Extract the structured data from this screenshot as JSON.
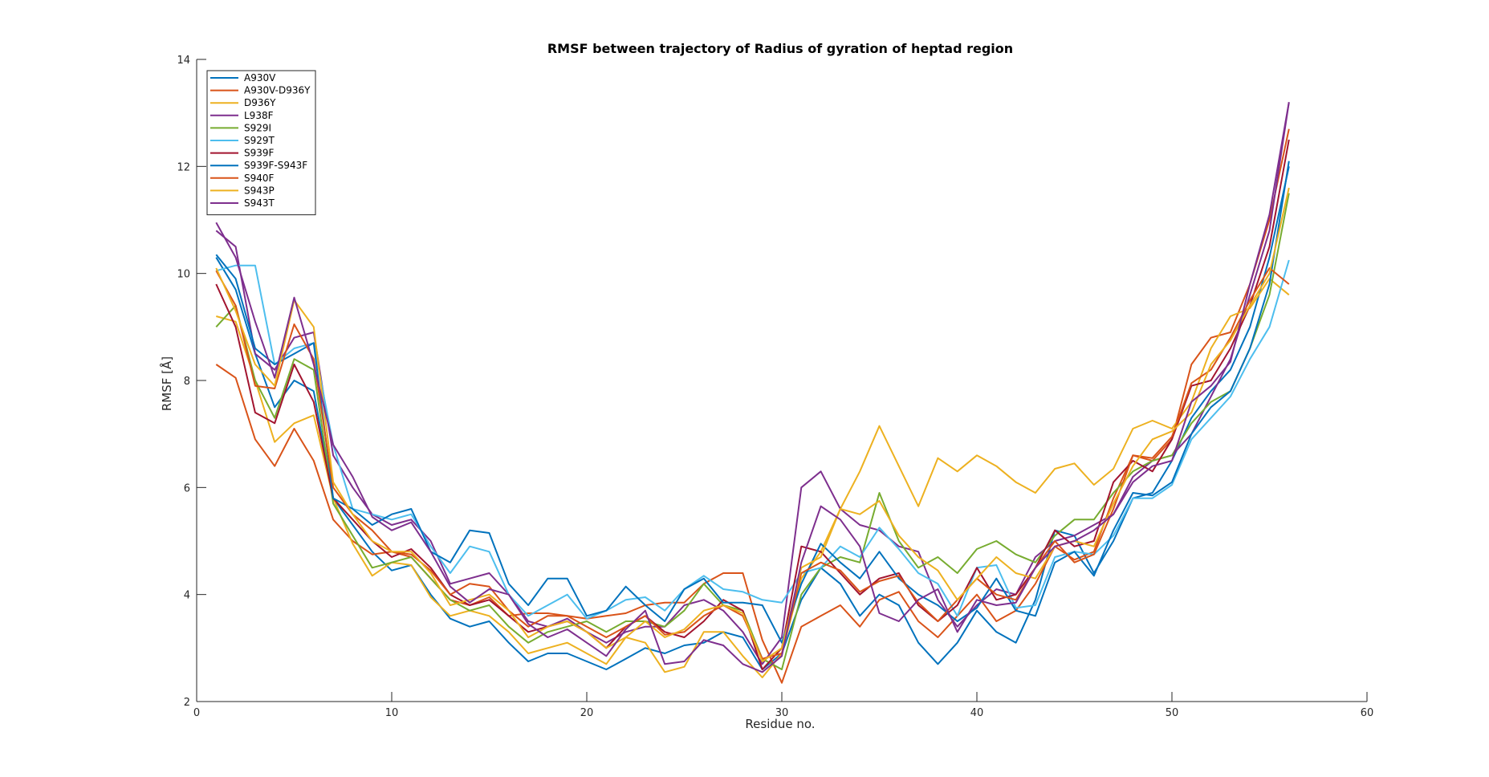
{
  "chart_data": {
    "type": "line",
    "title": "RMSF between trajectory of Radius of gyration of heptad region",
    "xlabel": "Residue no.",
    "ylabel": "RMSF [Å]",
    "xlim": [
      0,
      60
    ],
    "ylim": [
      2,
      14
    ],
    "xticks": [
      0,
      10,
      20,
      30,
      40,
      50,
      60
    ],
    "yticks": [
      2,
      4,
      6,
      8,
      10,
      12,
      14
    ],
    "grid": false,
    "legend_position": "top-left",
    "x": [
      1,
      2,
      3,
      4,
      5,
      6,
      7,
      8,
      9,
      10,
      11,
      12,
      13,
      14,
      15,
      16,
      17,
      18,
      19,
      20,
      21,
      22,
      23,
      24,
      25,
      26,
      27,
      28,
      29,
      30,
      31,
      32,
      33,
      34,
      35,
      36,
      37,
      38,
      39,
      40,
      41,
      42,
      43,
      44,
      45,
      46,
      47,
      48,
      49,
      50,
      51,
      52,
      53,
      54,
      55,
      56
    ],
    "series": [
      {
        "name": "A930V",
        "color": "#0072BD",
        "values": [
          10.3,
          9.7,
          8.5,
          7.5,
          8.0,
          7.8,
          5.8,
          5.3,
          4.8,
          4.45,
          4.55,
          4.0,
          3.55,
          3.4,
          3.5,
          3.1,
          2.75,
          2.9,
          2.9,
          2.75,
          2.6,
          2.8,
          3.0,
          2.9,
          3.05,
          3.1,
          3.3,
          3.2,
          2.6,
          2.9,
          3.9,
          4.5,
          4.2,
          3.6,
          4.0,
          3.8,
          3.1,
          2.7,
          3.1,
          3.7,
          3.3,
          3.1,
          3.9,
          5.2,
          5.1,
          4.4,
          5.0,
          5.8,
          5.9,
          6.5,
          7.3,
          7.8,
          8.2,
          9.0,
          10.3,
          12.0
        ]
      },
      {
        "name": "A930V-D936Y",
        "color": "#D95319",
        "values": [
          8.3,
          8.05,
          6.9,
          6.4,
          7.1,
          6.5,
          5.4,
          5.0,
          4.75,
          4.8,
          4.7,
          4.3,
          3.9,
          3.8,
          3.95,
          3.6,
          3.65,
          3.65,
          3.6,
          3.55,
          3.6,
          3.65,
          3.8,
          3.85,
          3.85,
          4.2,
          4.4,
          4.4,
          3.15,
          2.35,
          3.4,
          3.6,
          3.8,
          3.4,
          3.9,
          4.05,
          3.5,
          3.2,
          3.6,
          4.0,
          3.5,
          3.7,
          4.2,
          4.9,
          4.65,
          4.8,
          5.8,
          6.6,
          6.5,
          6.9,
          8.3,
          8.8,
          8.9,
          9.8,
          11.0,
          12.7
        ]
      },
      {
        "name": "D936Y",
        "color": "#EDB120",
        "values": [
          9.2,
          9.1,
          8.0,
          6.85,
          7.2,
          7.35,
          5.8,
          4.95,
          4.35,
          4.6,
          4.55,
          3.95,
          3.6,
          3.7,
          3.6,
          3.3,
          2.9,
          3.0,
          3.1,
          2.9,
          2.7,
          3.2,
          3.1,
          2.55,
          2.65,
          3.3,
          3.3,
          2.85,
          2.45,
          2.9,
          4.3,
          4.8,
          5.6,
          6.3,
          7.15,
          6.4,
          5.65,
          6.55,
          6.3,
          6.6,
          6.4,
          6.1,
          5.9,
          6.35,
          6.45,
          6.05,
          6.35,
          7.1,
          7.25,
          7.1,
          7.6,
          8.6,
          9.2,
          9.35,
          9.9,
          9.6
        ]
      },
      {
        "name": "L938F",
        "color": "#7E2F8E",
        "values": [
          10.8,
          10.5,
          8.5,
          8.2,
          8.8,
          8.9,
          6.6,
          6.0,
          5.5,
          5.3,
          5.4,
          5.0,
          4.2,
          4.3,
          4.4,
          4.0,
          3.5,
          3.4,
          3.55,
          3.3,
          3.1,
          3.3,
          3.4,
          3.4,
          3.8,
          3.9,
          3.7,
          3.3,
          2.7,
          3.2,
          6.0,
          6.3,
          5.6,
          5.3,
          5.2,
          4.9,
          4.8,
          3.9,
          3.4,
          3.8,
          4.1,
          4.0,
          4.7,
          5.0,
          5.1,
          5.3,
          5.5,
          6.2,
          6.5,
          6.6,
          7.0,
          7.7,
          8.4,
          9.6,
          10.8,
          13.2
        ]
      },
      {
        "name": "S929I",
        "color": "#77AC30",
        "values": [
          9.0,
          9.4,
          8.0,
          7.3,
          8.4,
          8.2,
          5.7,
          5.1,
          4.5,
          4.6,
          4.7,
          4.3,
          3.9,
          3.7,
          3.8,
          3.4,
          3.1,
          3.3,
          3.4,
          3.5,
          3.3,
          3.5,
          3.5,
          3.4,
          3.7,
          4.2,
          3.8,
          3.7,
          2.8,
          2.6,
          4.0,
          4.5,
          4.7,
          4.6,
          5.9,
          5.0,
          4.5,
          4.7,
          4.4,
          4.85,
          5.0,
          4.75,
          4.6,
          5.1,
          5.4,
          5.4,
          5.9,
          6.3,
          6.5,
          6.6,
          7.2,
          7.6,
          7.8,
          8.6,
          9.6,
          11.5
        ]
      },
      {
        "name": "S929T",
        "color": "#4DBEEE",
        "values": [
          10.05,
          10.15,
          10.15,
          8.3,
          8.6,
          8.7,
          6.8,
          5.6,
          5.5,
          5.4,
          5.5,
          4.9,
          4.4,
          4.9,
          4.8,
          4.0,
          3.6,
          3.8,
          4.0,
          3.55,
          3.7,
          3.9,
          3.95,
          3.7,
          4.1,
          4.35,
          4.1,
          4.05,
          3.9,
          3.85,
          4.4,
          4.5,
          4.9,
          4.7,
          5.25,
          4.85,
          4.4,
          4.2,
          3.6,
          4.5,
          4.55,
          3.75,
          3.8,
          4.7,
          4.8,
          4.75,
          5.1,
          5.8,
          5.8,
          6.05,
          6.9,
          7.3,
          7.7,
          8.4,
          9.0,
          10.25
        ]
      },
      {
        "name": "S939F",
        "color": "#A2142F",
        "values": [
          9.8,
          9.0,
          7.4,
          7.2,
          8.3,
          7.6,
          5.8,
          5.4,
          5.0,
          4.7,
          4.85,
          4.5,
          4.0,
          3.8,
          3.9,
          3.6,
          3.3,
          3.4,
          3.5,
          3.3,
          3.0,
          3.4,
          3.6,
          3.3,
          3.2,
          3.5,
          3.9,
          3.7,
          2.6,
          3.0,
          4.9,
          4.8,
          4.4,
          4.0,
          4.3,
          4.4,
          3.8,
          3.5,
          3.8,
          4.5,
          3.9,
          4.0,
          4.5,
          5.2,
          4.9,
          5.0,
          6.1,
          6.5,
          6.3,
          6.9,
          7.9,
          8.0,
          8.6,
          9.4,
          10.5,
          12.5
        ]
      },
      {
        "name": "S939F-S943F",
        "color": "#0072BD",
        "values": [
          10.35,
          9.9,
          8.6,
          8.3,
          8.5,
          8.7,
          5.8,
          5.6,
          5.3,
          5.5,
          5.6,
          4.8,
          4.6,
          5.2,
          5.15,
          4.2,
          3.8,
          4.3,
          4.3,
          3.6,
          3.7,
          4.15,
          3.8,
          3.5,
          4.1,
          4.3,
          3.85,
          3.85,
          3.8,
          3.1,
          4.2,
          4.95,
          4.6,
          4.3,
          4.8,
          4.3,
          4.0,
          3.8,
          3.5,
          3.75,
          4.3,
          3.7,
          3.6,
          4.6,
          4.8,
          4.35,
          5.2,
          5.9,
          5.85,
          6.1,
          7.0,
          7.5,
          7.8,
          8.6,
          9.8,
          12.1
        ]
      },
      {
        "name": "S940F",
        "color": "#D95319",
        "values": [
          10.05,
          9.4,
          7.9,
          7.85,
          9.05,
          8.4,
          6.0,
          5.5,
          5.2,
          4.8,
          4.75,
          4.45,
          4.0,
          4.2,
          4.15,
          3.7,
          3.4,
          3.6,
          3.6,
          3.4,
          3.2,
          3.4,
          3.6,
          3.25,
          3.3,
          3.6,
          3.8,
          3.6,
          2.8,
          2.9,
          4.4,
          4.6,
          4.45,
          4.05,
          4.25,
          4.35,
          3.85,
          3.5,
          3.9,
          4.3,
          4.0,
          3.9,
          4.5,
          5.0,
          4.6,
          4.75,
          5.6,
          6.6,
          6.55,
          6.95,
          7.95,
          8.2,
          8.8,
          9.5,
          10.1,
          9.8
        ]
      },
      {
        "name": "S943P",
        "color": "#EDB120",
        "values": [
          10.1,
          9.3,
          8.3,
          7.9,
          9.5,
          9.0,
          6.1,
          5.5,
          5.0,
          4.8,
          4.8,
          4.4,
          3.8,
          3.9,
          4.0,
          3.7,
          3.2,
          3.4,
          3.5,
          3.3,
          3.0,
          3.2,
          3.5,
          3.2,
          3.35,
          3.7,
          3.8,
          3.65,
          2.75,
          3.0,
          4.5,
          4.7,
          5.6,
          5.5,
          5.75,
          5.1,
          4.7,
          4.45,
          3.9,
          4.3,
          4.7,
          4.4,
          4.3,
          4.9,
          5.0,
          4.9,
          5.7,
          6.4,
          6.9,
          7.05,
          7.4,
          8.3,
          8.75,
          9.4,
          10.0,
          11.6
        ]
      },
      {
        "name": "S943T",
        "color": "#7E2F8E",
        "values": [
          10.95,
          10.3,
          9.1,
          8.05,
          9.55,
          8.3,
          6.8,
          6.2,
          5.45,
          5.2,
          5.35,
          4.8,
          4.15,
          3.85,
          4.1,
          4.0,
          3.45,
          3.2,
          3.35,
          3.1,
          2.85,
          3.35,
          3.7,
          2.7,
          2.75,
          3.15,
          3.05,
          2.7,
          2.55,
          2.85,
          4.6,
          5.65,
          5.4,
          4.9,
          3.65,
          3.5,
          3.9,
          4.1,
          3.3,
          3.9,
          3.8,
          3.85,
          4.5,
          4.9,
          5.0,
          5.2,
          5.5,
          6.1,
          6.4,
          6.5,
          7.6,
          7.9,
          8.35,
          9.8,
          11.1,
          13.2
        ]
      }
    ]
  }
}
